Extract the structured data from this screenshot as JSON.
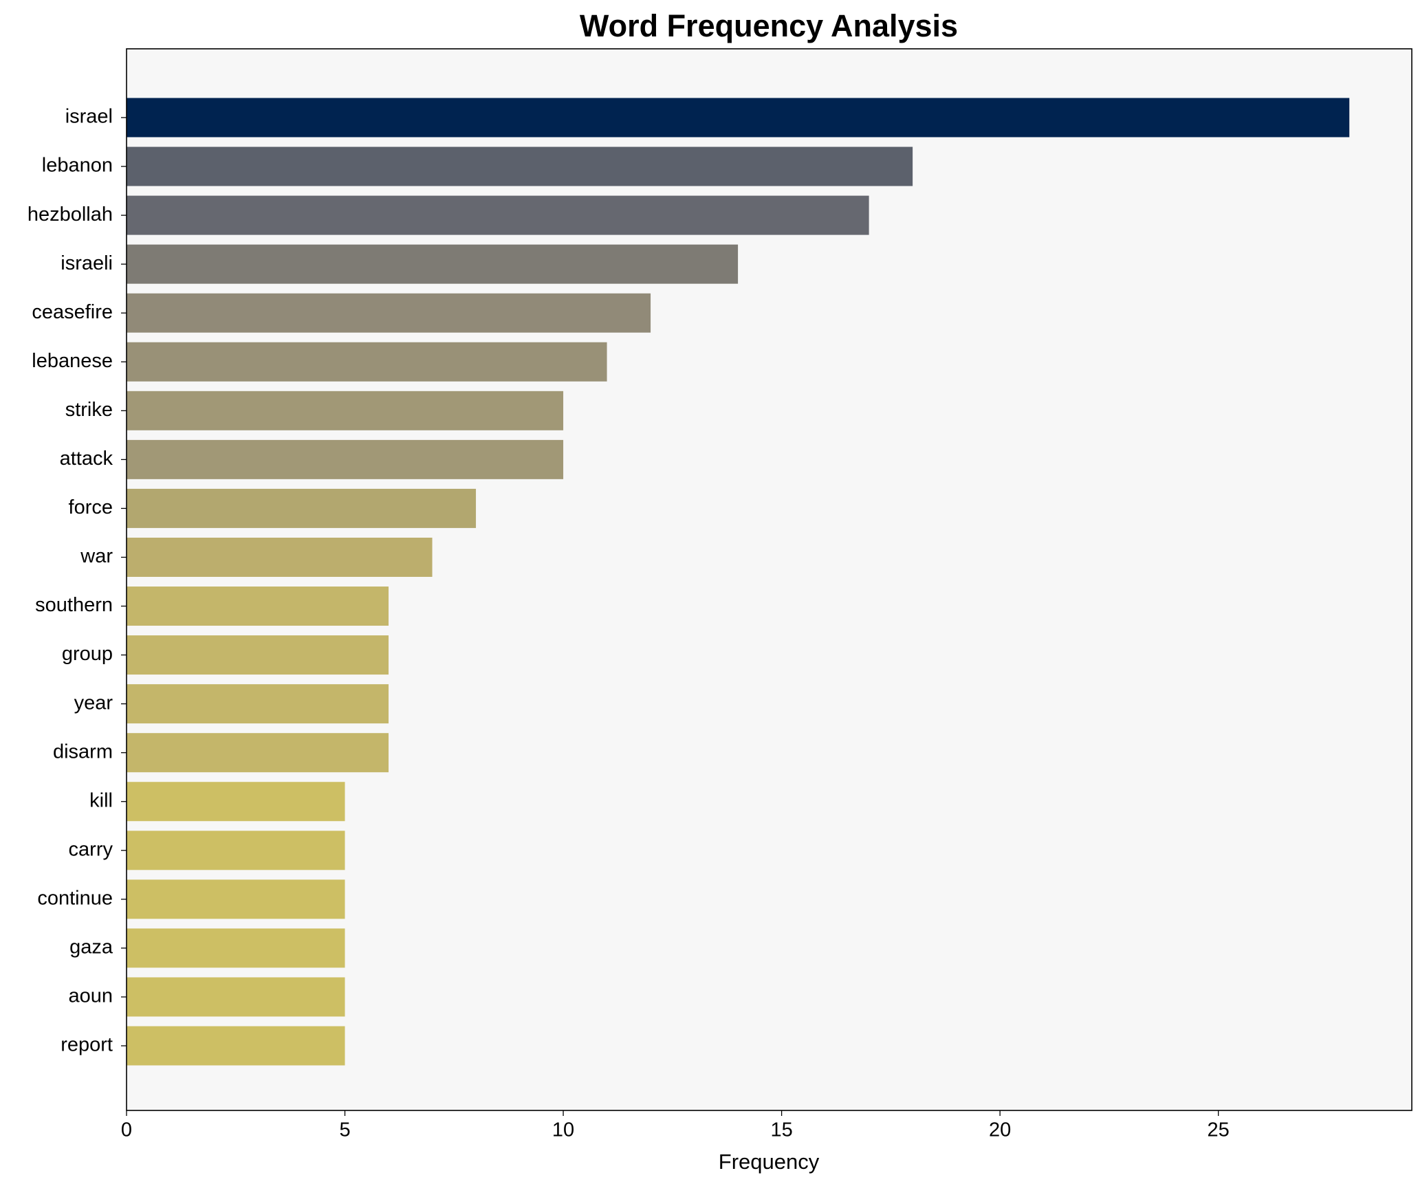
{
  "chart_data": {
    "type": "barh",
    "title": "Word Frequency Analysis",
    "xlabel": "Frequency",
    "categories": [
      "israel",
      "lebanon",
      "hezbollah",
      "israeli",
      "ceasefire",
      "lebanese",
      "strike",
      "attack",
      "force",
      "war",
      "southern",
      "group",
      "year",
      "disarm",
      "kill",
      "carry",
      "continue",
      "gaza",
      "aoun",
      "report"
    ],
    "values": [
      28,
      18,
      17,
      14,
      12,
      11,
      10,
      10,
      8,
      7,
      6,
      6,
      6,
      6,
      5,
      5,
      5,
      5,
      5,
      5
    ],
    "colors": [
      "#002350",
      "#5c616c",
      "#666870",
      "#7e7b74",
      "#918a78",
      "#999177",
      "#a19876",
      "#a19876",
      "#b2a76f",
      "#bcae6d",
      "#c4b66a",
      "#c4b66a",
      "#c4b66a",
      "#c4b66a",
      "#cdbf64",
      "#cdbf64",
      "#cdbf64",
      "#cdbf64",
      "#cdbf64",
      "#cdbf64"
    ],
    "xlim": [
      0,
      29.43
    ],
    "xticks": [
      0,
      5,
      10,
      15,
      20,
      25
    ],
    "grid": false
  }
}
